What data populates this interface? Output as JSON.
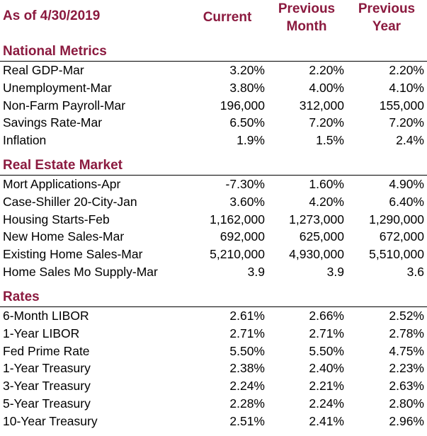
{
  "header": {
    "as_of": "As of 4/30/2019",
    "col_current": "Current",
    "col_prev_month_1": "Previous",
    "col_prev_month_2": "Month",
    "col_prev_year_1": "Previous",
    "col_prev_year_2": "Year"
  },
  "colors": {
    "accent": "#8b1a3f"
  },
  "sections": [
    {
      "title": "National Metrics",
      "rows": [
        {
          "label": "Real GDP-Mar",
          "current": "3.20%",
          "prev_month": "2.20%",
          "prev_year": "2.20%"
        },
        {
          "label": "Unemployment-Mar",
          "current": "3.80%",
          "prev_month": "4.00%",
          "prev_year": "4.10%"
        },
        {
          "label": "Non-Farm Payroll-Mar",
          "current": "196,000",
          "prev_month": "312,000",
          "prev_year": "155,000"
        },
        {
          "label": "Savings Rate-Mar",
          "current": "6.50%",
          "prev_month": "7.20%",
          "prev_year": "7.20%"
        },
        {
          "label": "Inflation",
          "current": "1.9%",
          "prev_month": "1.5%",
          "prev_year": "2.4%"
        }
      ]
    },
    {
      "title": "Real Estate Market",
      "rows": [
        {
          "label": "Mort Applications-Apr",
          "current": "-7.30%",
          "prev_month": "1.60%",
          "prev_year": "4.90%"
        },
        {
          "label": "Case-Shiller 20-City-Jan",
          "current": "3.60%",
          "prev_month": "4.20%",
          "prev_year": "6.40%"
        },
        {
          "label": "Housing Starts-Feb",
          "current": "1,162,000",
          "prev_month": "1,273,000",
          "prev_year": "1,290,000"
        },
        {
          "label": "New Home Sales-Mar",
          "current": "692,000",
          "prev_month": "625,000",
          "prev_year": "672,000"
        },
        {
          "label": "Existing Home Sales-Mar",
          "current": "5,210,000",
          "prev_month": "4,930,000",
          "prev_year": "5,510,000"
        },
        {
          "label": "Home Sales Mo Supply-Mar",
          "current": "3.9",
          "prev_month": "3.9",
          "prev_year": "3.6"
        }
      ]
    },
    {
      "title": "Rates",
      "rows": [
        {
          "label": "6-Month LIBOR",
          "current": "2.61%",
          "prev_month": "2.66%",
          "prev_year": "2.52%"
        },
        {
          "label": "1-Year LIBOR",
          "current": "2.71%",
          "prev_month": "2.71%",
          "prev_year": "2.78%"
        },
        {
          "label": "Fed Prime Rate",
          "current": "5.50%",
          "prev_month": "5.50%",
          "prev_year": "4.75%"
        },
        {
          "label": "1-Year Treasury",
          "current": "2.38%",
          "prev_month": "2.40%",
          "prev_year": "2.23%"
        },
        {
          "label": "3-Year Treasury",
          "current": "2.24%",
          "prev_month": "2.21%",
          "prev_year": "2.63%"
        },
        {
          "label": "5-Year Treasury",
          "current": "2.28%",
          "prev_month": "2.24%",
          "prev_year": "2.80%"
        },
        {
          "label": "10-Year Treasury",
          "current": "2.51%",
          "prev_month": "2.41%",
          "prev_year": "2.96%"
        }
      ]
    }
  ]
}
